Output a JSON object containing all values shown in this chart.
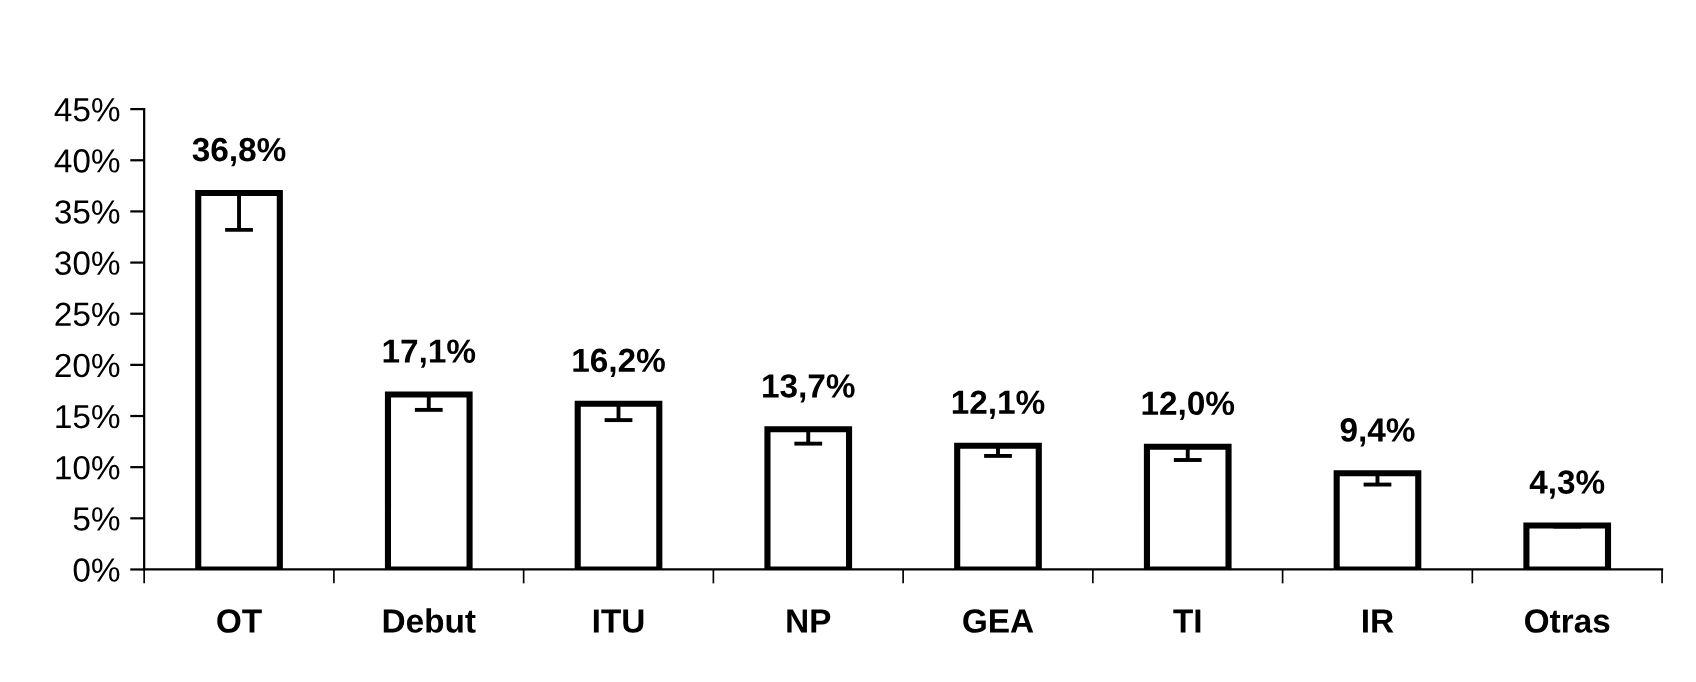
{
  "chart_data": {
    "type": "bar",
    "categories": [
      "OT",
      "Debut",
      "ITU",
      "NP",
      "GEA",
      "TI",
      "IR",
      "Otras"
    ],
    "values": [
      36.8,
      17.1,
      16.2,
      13.7,
      12.1,
      12.0,
      9.4,
      4.3
    ],
    "value_labels": [
      "36,8%",
      "17,1%",
      "16,2%",
      "13,7%",
      "12,1%",
      "12,0%",
      "9,4%",
      "4,3%"
    ],
    "errors": [
      [
        33.2,
        36.8
      ],
      [
        15.6,
        17.1
      ],
      [
        14.6,
        16.2
      ],
      [
        12.3,
        13.7
      ],
      [
        11.1,
        12.1
      ],
      [
        10.7,
        12.0
      ],
      [
        8.3,
        9.4
      ],
      [
        4.2,
        4.3
      ]
    ],
    "color": "#ffffff",
    "ylim": [
      0,
      45
    ],
    "yticks": [
      {
        "value": 0,
        "label": "0%"
      },
      {
        "value": 5,
        "label": "5%"
      },
      {
        "value": 10,
        "label": "10%"
      },
      {
        "value": 15,
        "label": "15%"
      },
      {
        "value": 20,
        "label": "20%"
      },
      {
        "value": 25,
        "label": "25%"
      },
      {
        "value": 30,
        "label": "30%"
      },
      {
        "value": 35,
        "label": "35%"
      },
      {
        "value": 40,
        "label": "40%"
      },
      {
        "value": 45,
        "label": "45%"
      }
    ],
    "grid": false,
    "legend": false
  }
}
